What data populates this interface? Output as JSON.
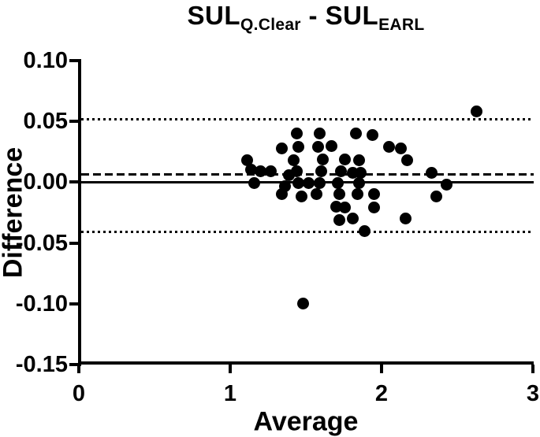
{
  "chart_data": {
    "type": "scatter",
    "title": {
      "full": "SUL Q.Clear - SUL EARL",
      "base1": "SUL",
      "sub1": "Q.Clear",
      "base2": " - SUL",
      "sub2": "EARL"
    },
    "xlabel": "Average",
    "ylabel": "Difference",
    "xlim": [
      0,
      3
    ],
    "ylim": [
      -0.15,
      0.1
    ],
    "grid": false,
    "legend": "none",
    "marker_color": "#000000",
    "axis_color": "#000000",
    "background_color": "#ffffff",
    "x_ticks": [
      {
        "value": 0,
        "label": "0"
      },
      {
        "value": 1,
        "label": "1"
      },
      {
        "value": 2,
        "label": "2"
      },
      {
        "value": 3,
        "label": "3"
      }
    ],
    "y_ticks": [
      {
        "value": 0.1,
        "label": "0.10"
      },
      {
        "value": 0.05,
        "label": "0.05"
      },
      {
        "value": 0.0,
        "label": "0.00"
      },
      {
        "value": -0.05,
        "label": "-0.05"
      },
      {
        "value": -0.1,
        "label": "-0.10"
      },
      {
        "value": -0.15,
        "label": "-0.15"
      }
    ],
    "reference_lines": [
      {
        "name": "upper-limit-of-agreement",
        "value": 0.052,
        "style": "dotted"
      },
      {
        "name": "mean-bias",
        "value": 0.0065,
        "style": "dashed"
      },
      {
        "name": "zero-line",
        "value": 0.0,
        "style": "solid"
      },
      {
        "name": "lower-limit-of-agreement",
        "value": -0.041,
        "style": "dotted"
      }
    ],
    "points": [
      [
        1.11,
        0.018
      ],
      [
        1.14,
        0.01
      ],
      [
        1.2,
        0.009
      ],
      [
        1.27,
        0.009
      ],
      [
        1.16,
        -0.001
      ],
      [
        1.34,
        0.028
      ],
      [
        1.44,
        0.04
      ],
      [
        1.45,
        0.029
      ],
      [
        1.42,
        0.018
      ],
      [
        1.44,
        0.009
      ],
      [
        1.39,
        0.006
      ],
      [
        1.36,
        -0.003
      ],
      [
        1.45,
        -0.001
      ],
      [
        1.34,
        -0.01
      ],
      [
        1.47,
        -0.012
      ],
      [
        1.48,
        -0.1
      ],
      [
        1.59,
        0.04
      ],
      [
        1.58,
        0.029
      ],
      [
        1.67,
        0.03
      ],
      [
        1.61,
        0.019
      ],
      [
        1.6,
        0.009
      ],
      [
        1.52,
        -0.001
      ],
      [
        1.59,
        -0.001
      ],
      [
        1.57,
        -0.01
      ],
      [
        1.76,
        0.019
      ],
      [
        1.73,
        0.009
      ],
      [
        1.81,
        0.008
      ],
      [
        1.86,
        0.008
      ],
      [
        1.71,
        -0.001
      ],
      [
        1.85,
        -0.001
      ],
      [
        1.72,
        -0.01
      ],
      [
        1.84,
        -0.01
      ],
      [
        1.95,
        -0.01
      ],
      [
        1.7,
        -0.02
      ],
      [
        1.76,
        -0.021
      ],
      [
        1.95,
        -0.021
      ],
      [
        1.72,
        -0.031
      ],
      [
        1.81,
        -0.03
      ],
      [
        1.89,
        -0.04
      ],
      [
        1.83,
        0.04
      ],
      [
        1.94,
        0.039
      ],
      [
        1.85,
        0.018
      ],
      [
        2.05,
        0.029
      ],
      [
        2.13,
        0.028
      ],
      [
        2.17,
        0.018
      ],
      [
        2.16,
        -0.03
      ],
      [
        2.33,
        0.008
      ],
      [
        2.43,
        -0.002
      ],
      [
        2.36,
        -0.012
      ],
      [
        2.63,
        0.058
      ]
    ]
  }
}
